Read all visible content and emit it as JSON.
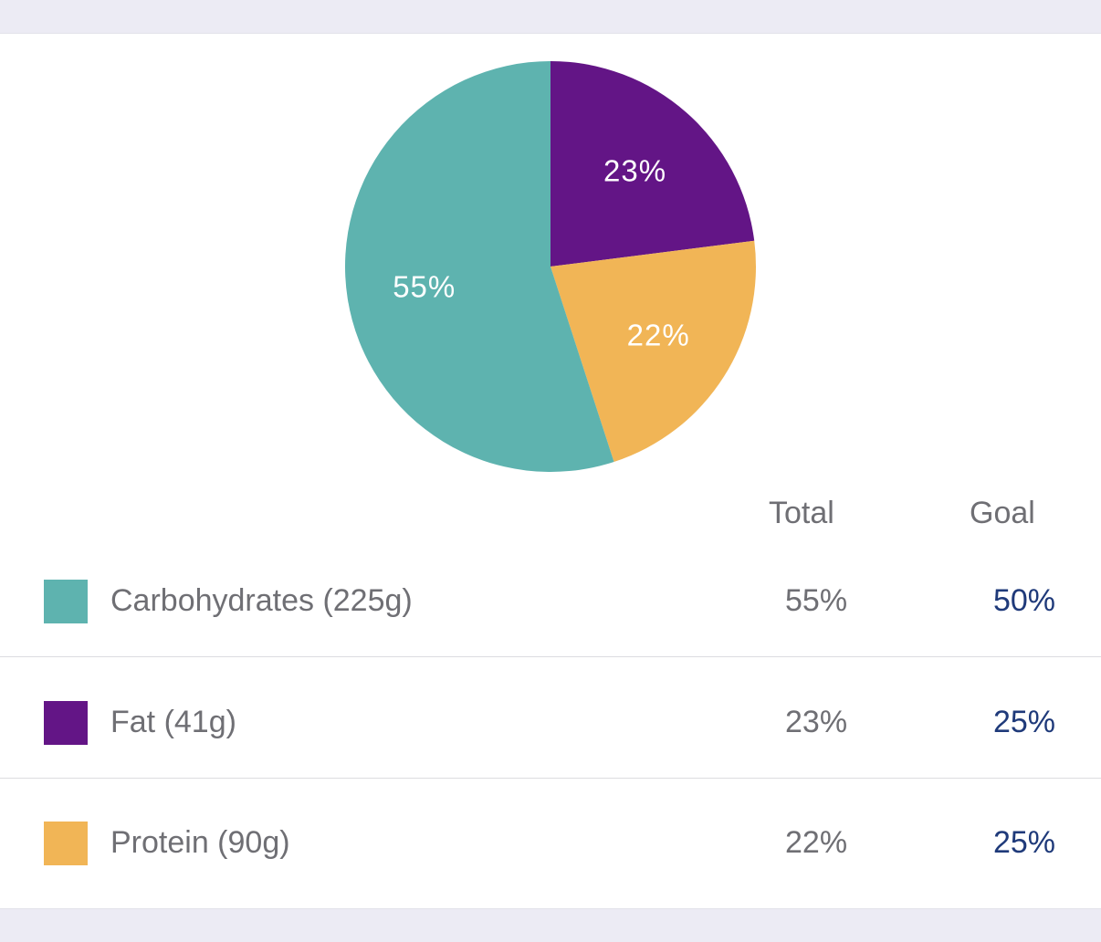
{
  "chart_data": {
    "type": "pie",
    "slices": [
      {
        "name": "Fat",
        "value": 23,
        "label": "23%",
        "color": "#631586"
      },
      {
        "name": "Protein",
        "value": 22,
        "label": "22%",
        "color": "#f1b556"
      },
      {
        "name": "Carbohydrates",
        "value": 55,
        "label": "55%",
        "color": "#5eb3af"
      }
    ],
    "start_angle_deg": 0,
    "direction": "clockwise"
  },
  "table": {
    "headers": {
      "total": "Total",
      "goal": "Goal"
    },
    "rows": [
      {
        "label": "Carbohydrates (225g)",
        "total": "55%",
        "goal": "50%",
        "color": "#5eb3af"
      },
      {
        "label": "Fat (41g)",
        "total": "23%",
        "goal": "25%",
        "color": "#631586"
      },
      {
        "label": "Protein (90g)",
        "total": "22%",
        "goal": "25%",
        "color": "#f1b556"
      }
    ]
  },
  "colors": {
    "goal_text": "#1f3a7a",
    "muted_text": "#6f6f74"
  }
}
